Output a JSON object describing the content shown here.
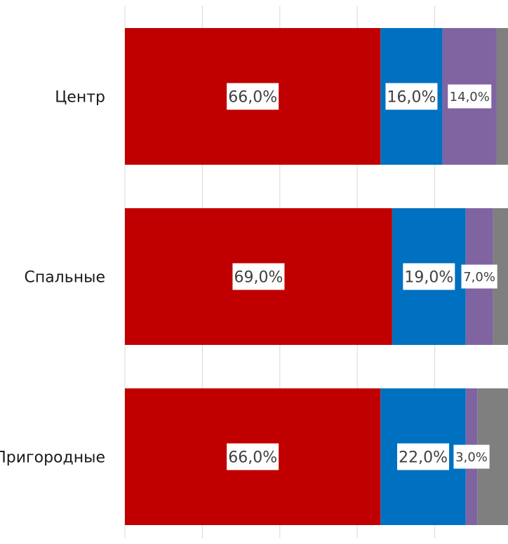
{
  "chart_data": {
    "type": "bar",
    "orientation": "horizontal",
    "stacked": true,
    "percent_stacked": true,
    "categories": [
      "Центр",
      "Спальные",
      "Пригородные"
    ],
    "series": [
      {
        "values": [
          66,
          69,
          66
        ],
        "labels": [
          "66,0%",
          "69,0%",
          "66,0%"
        ],
        "color": "#C00000"
      },
      {
        "values": [
          16,
          19,
          22
        ],
        "labels": [
          "16,0%",
          "19,0%",
          "22,0%"
        ],
        "color": "#0070C0"
      },
      {
        "values": [
          14,
          7,
          3
        ],
        "labels": [
          "14,0%",
          "7,0%",
          "3,0%"
        ],
        "color": "#8064A2"
      },
      {
        "values": [
          4,
          5,
          9
        ],
        "labels": [
          "",
          "",
          ""
        ],
        "color": "#7F7F7F"
      }
    ],
    "xlim": [
      0,
      100
    ],
    "grid": true,
    "legend": "none",
    "title": "",
    "xlabel": "",
    "ylabel": ""
  }
}
